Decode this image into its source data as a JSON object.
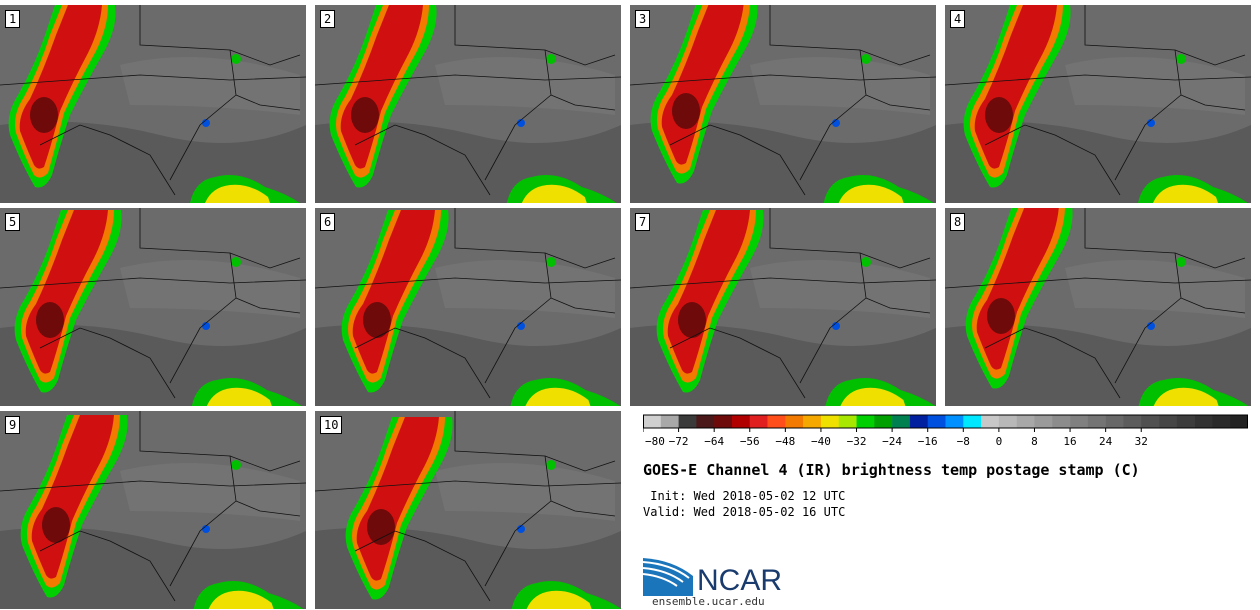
{
  "panels": [
    {
      "label": "1"
    },
    {
      "label": "2"
    },
    {
      "label": "3"
    },
    {
      "label": "4"
    },
    {
      "label": "5"
    },
    {
      "label": "6"
    },
    {
      "label": "7"
    },
    {
      "label": "8"
    },
    {
      "label": "9"
    },
    {
      "label": "10"
    }
  ],
  "colorbar": {
    "tick_labels": [
      "−80",
      "−72",
      "−64",
      "−56",
      "−48",
      "−40",
      "−32",
      "−24",
      "−16",
      "−8",
      "0",
      "8",
      "16",
      "24",
      "32"
    ],
    "colors": [
      "#d0d0d0",
      "#a8a8a8",
      "#3a3a3a",
      "#4a1818",
      "#6e0a0a",
      "#b00000",
      "#e02020",
      "#ff4e1a",
      "#f27a00",
      "#f5a800",
      "#f0e000",
      "#a8e800",
      "#00d000",
      "#00a000",
      "#008050",
      "#0020a0",
      "#0050e0",
      "#0090ff",
      "#00e8ff",
      "#c8c8c8",
      "#b8b8b8",
      "#a8a8a8",
      "#9a9a9a",
      "#8c8c8c",
      "#808080",
      "#747474",
      "#686868",
      "#5c5c5c",
      "#505050",
      "#464646",
      "#3c3c3c",
      "#323232",
      "#2a2a2a",
      "#222222"
    ]
  },
  "title": "GOES-E Channel 4 (IR) brightness temp postage stamp (C)",
  "init_line": " Init: Wed 2018-05-02 12 UTC",
  "valid_line": "Valid: Wed 2018-05-02 16 UTC",
  "logo": {
    "text": "NCAR",
    "url": "ensemble.ucar.edu"
  }
}
